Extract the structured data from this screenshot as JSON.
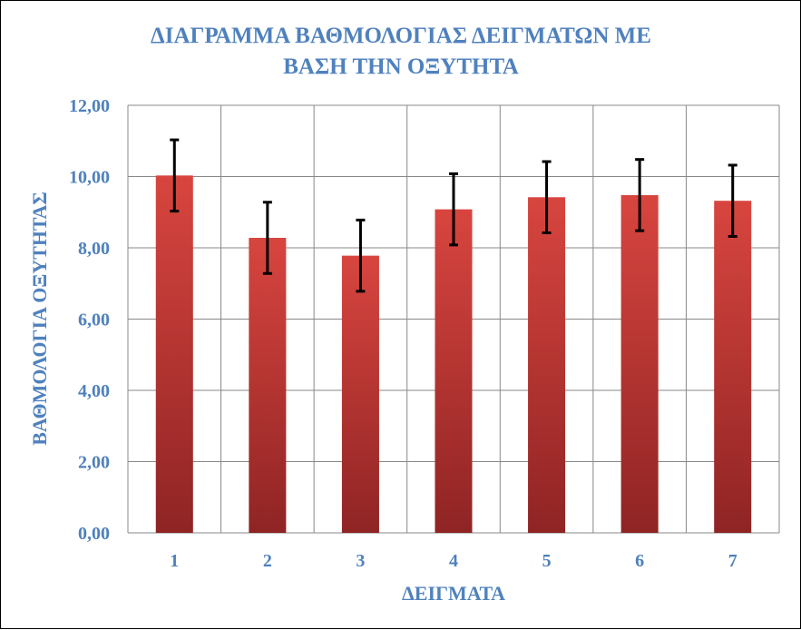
{
  "chart_data": {
    "type": "bar",
    "title_lines": [
      "ΔΙΑΓΡΑΜΜΑ ΒΑΘΜΟΛΟΓΙΑΣ ΔΕΙΓΜΑΤΩΝ ΜΕ",
      "ΒΑΣΗ ΤΗΝ ΟΞΥΤΗΤΑ"
    ],
    "xlabel": "ΔΕΙΓΜΑΤΑ",
    "ylabel": "ΒΑΘΜΟΛΟΓΙΑ ΟΞΥΤΗΤΑΣ",
    "categories": [
      "1",
      "2",
      "3",
      "4",
      "5",
      "6",
      "7"
    ],
    "values": [
      10.03,
      8.28,
      7.78,
      9.08,
      9.42,
      9.48,
      9.32
    ],
    "error": [
      1.0,
      1.0,
      1.0,
      1.0,
      1.0,
      1.0,
      1.0
    ],
    "ylim": [
      0,
      12
    ],
    "yticks": [
      "0,00",
      "2,00",
      "4,00",
      "6,00",
      "8,00",
      "10,00",
      "12,00"
    ],
    "ytick_values": [
      0,
      2,
      4,
      6,
      8,
      10,
      12
    ],
    "grid": "both",
    "legend": "none",
    "colors": {
      "bar_light": "#d8453f",
      "bar_dark": "#8f2424",
      "text": "#4f81bd",
      "grid": "#888888"
    }
  }
}
